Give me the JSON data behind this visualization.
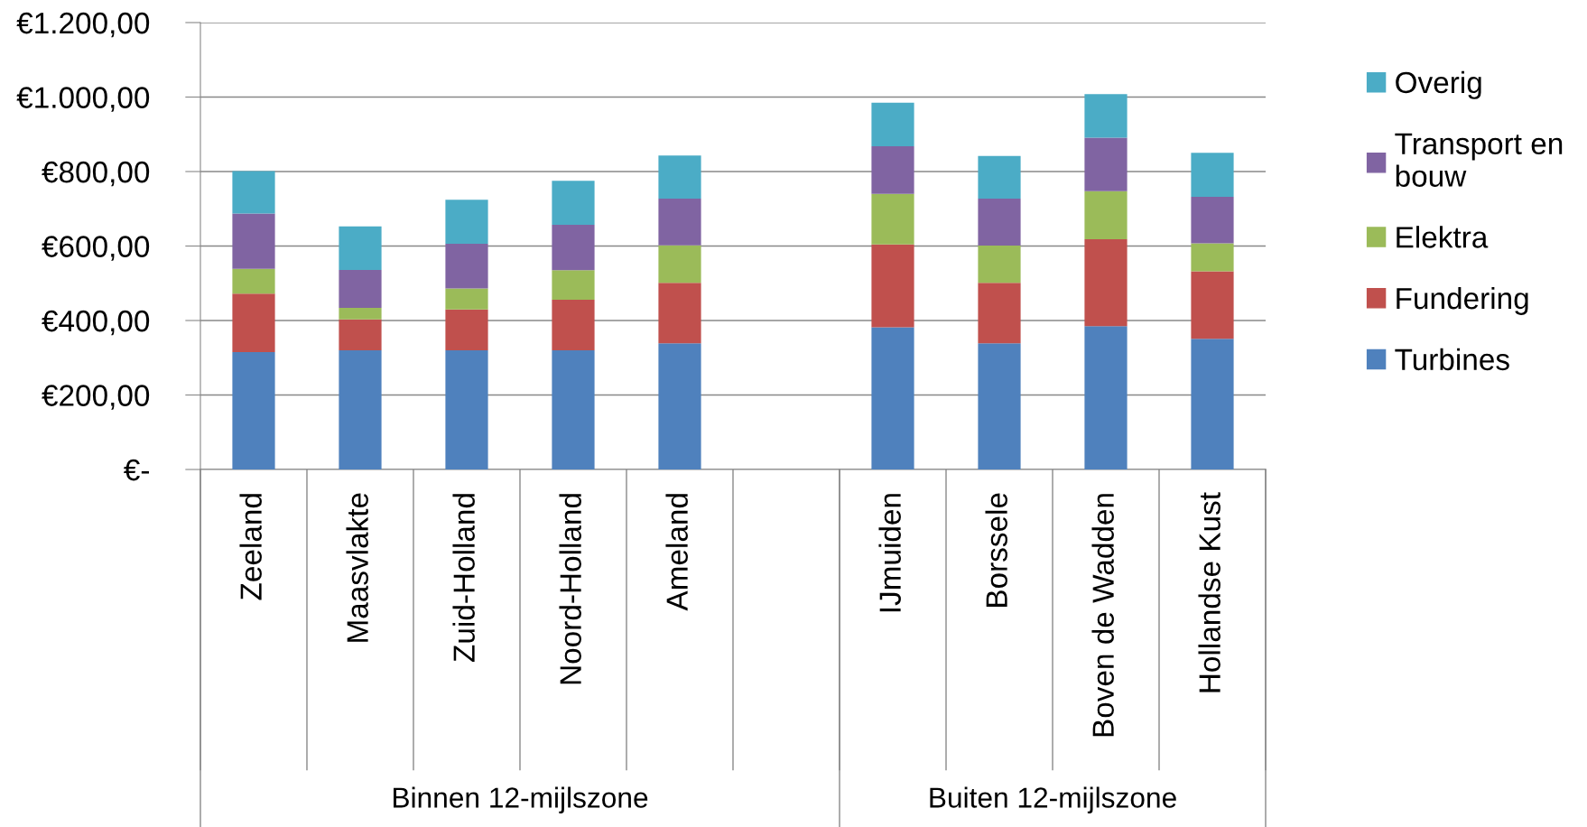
{
  "chart_data": {
    "type": "bar",
    "stacked": true,
    "categories": [
      "Zeeland",
      "Maasvlakte",
      "Zuid-Holland",
      "Noord-Holland",
      "Ameland",
      null,
      "IJmuiden",
      "Borssele",
      "Boven de Wadden",
      "Hollandse Kust"
    ],
    "series": [
      {
        "name": "Turbines",
        "color": "#4f81bd",
        "values": [
          315,
          320,
          320,
          320,
          339,
          null,
          382,
          339,
          385,
          351
        ]
      },
      {
        "name": "Fundering",
        "color": "#c0504d",
        "values": [
          157,
          83,
          110,
          136,
          162,
          null,
          222,
          162,
          233,
          181
        ]
      },
      {
        "name": "Elektra",
        "color": "#9bbb59",
        "values": [
          67,
          31,
          56,
          79,
          101,
          null,
          136,
          100,
          129,
          75
        ]
      },
      {
        "name": "Transport en bouw",
        "color": "#8064a2",
        "values": [
          148,
          102,
          120,
          122,
          125,
          null,
          128,
          126,
          144,
          125
        ]
      },
      {
        "name": "Overig",
        "color": "#4bacc6",
        "values": [
          114,
          117,
          118,
          118,
          116,
          null,
          117,
          115,
          117,
          118
        ]
      }
    ],
    "ylim": [
      0,
      1200
    ],
    "yticks": [
      {
        "value": 0,
        "label": "€-"
      },
      {
        "value": 200,
        "label": "€200,00"
      },
      {
        "value": 400,
        "label": "€400,00"
      },
      {
        "value": 600,
        "label": "€600,00"
      },
      {
        "value": 800,
        "label": "€800,00"
      },
      {
        "value": 1000,
        "label": "€1.000,00"
      },
      {
        "value": 1200,
        "label": "€1.200,00"
      }
    ],
    "grid": "y",
    "legend": "right",
    "annotations": [
      "Binnen 12-mijlszone",
      "Buiten 12-mijlszone"
    ]
  }
}
